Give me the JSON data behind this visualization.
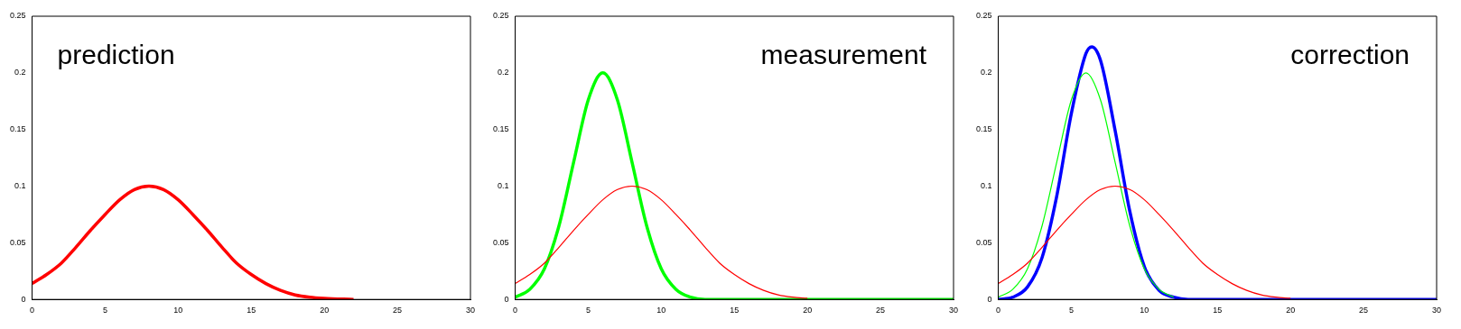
{
  "chart_data": [
    {
      "type": "line",
      "annotations": [
        "prediction"
      ],
      "xlim": [
        0,
        30
      ],
      "ylim": [
        0,
        0.25
      ],
      "xticks": [
        0,
        5,
        10,
        15,
        20,
        25,
        30
      ],
      "yticks": [
        0,
        0.05,
        0.1,
        0.15,
        0.2,
        0.25
      ],
      "grid": false,
      "legend": false,
      "marker": "none",
      "line_style": "solid",
      "series": [
        {
          "color": "#ff0000",
          "x": [
            0,
            1,
            2,
            3,
            4,
            5,
            6,
            7,
            8,
            9,
            10,
            11,
            12,
            13,
            14,
            15,
            16,
            17,
            18,
            19,
            20,
            22
          ],
          "values": [
            0.014,
            0.022,
            0.032,
            0.046,
            0.061,
            0.075,
            0.088,
            0.097,
            0.1,
            0.097,
            0.088,
            0.075,
            0.061,
            0.046,
            0.032,
            0.022,
            0.014,
            0.008,
            0.004,
            0.002,
            0.001,
            0
          ]
        }
      ]
    },
    {
      "type": "line",
      "annotations": [
        "measurement"
      ],
      "xlim": [
        0,
        30
      ],
      "ylim": [
        0,
        0.25
      ],
      "xticks": [
        0,
        5,
        10,
        15,
        20,
        25,
        30
      ],
      "yticks": [
        0,
        0.05,
        0.1,
        0.15,
        0.2,
        0.25
      ],
      "grid": false,
      "legend": false,
      "marker": "none",
      "line_style": "solid",
      "series": [
        {
          "color": "#ff0000",
          "x": [
            0,
            1,
            2,
            3,
            4,
            5,
            6,
            7,
            8,
            9,
            10,
            11,
            12,
            13,
            14,
            15,
            16,
            17,
            18,
            19,
            20
          ],
          "values": [
            0.014,
            0.022,
            0.032,
            0.046,
            0.061,
            0.075,
            0.088,
            0.097,
            0.1,
            0.097,
            0.088,
            0.075,
            0.061,
            0.046,
            0.032,
            0.022,
            0.014,
            0.008,
            0.004,
            0.002,
            0.001
          ]
        },
        {
          "color": "#00ff00",
          "x": [
            0,
            1,
            2,
            3,
            4,
            5,
            6,
            7,
            8,
            9,
            10,
            11,
            12,
            13,
            30
          ],
          "values": [
            0.002,
            0.009,
            0.027,
            0.065,
            0.121,
            0.176,
            0.2,
            0.176,
            0.121,
            0.065,
            0.027,
            0.009,
            0.002,
            0,
            0
          ]
        }
      ]
    },
    {
      "type": "line",
      "annotations": [
        "correction"
      ],
      "xlim": [
        0,
        30
      ],
      "ylim": [
        0,
        0.25
      ],
      "xticks": [
        0,
        5,
        10,
        15,
        20,
        25,
        30
      ],
      "yticks": [
        0,
        0.05,
        0.1,
        0.15,
        0.2,
        0.25
      ],
      "grid": false,
      "legend": false,
      "marker": "none",
      "line_style": "solid",
      "series": [
        {
          "color": "#ff0000",
          "x": [
            0,
            1,
            2,
            3,
            4,
            5,
            6,
            7,
            8,
            9,
            10,
            11,
            12,
            13,
            14,
            15,
            16,
            17,
            18,
            19,
            20
          ],
          "values": [
            0.014,
            0.022,
            0.032,
            0.046,
            0.061,
            0.075,
            0.088,
            0.097,
            0.1,
            0.097,
            0.088,
            0.075,
            0.061,
            0.046,
            0.032,
            0.022,
            0.014,
            0.008,
            0.004,
            0.002,
            0.001
          ]
        },
        {
          "color": "#00ff00",
          "x": [
            0,
            1,
            2,
            3,
            4,
            5,
            6,
            7,
            8,
            9,
            10,
            11,
            12
          ],
          "values": [
            0.002,
            0.009,
            0.027,
            0.065,
            0.121,
            0.176,
            0.2,
            0.176,
            0.121,
            0.065,
            0.027,
            0.009,
            0.002
          ]
        },
        {
          "color": "#0000ff",
          "x": [
            0,
            1,
            2,
            3,
            4,
            5,
            6,
            6.4,
            7,
            8,
            9,
            10,
            11,
            12,
            13,
            30
          ],
          "values": [
            0,
            0.002,
            0.011,
            0.037,
            0.091,
            0.164,
            0.217,
            0.223,
            0.211,
            0.149,
            0.078,
            0.029,
            0.008,
            0.002,
            0,
            0
          ]
        }
      ]
    }
  ]
}
